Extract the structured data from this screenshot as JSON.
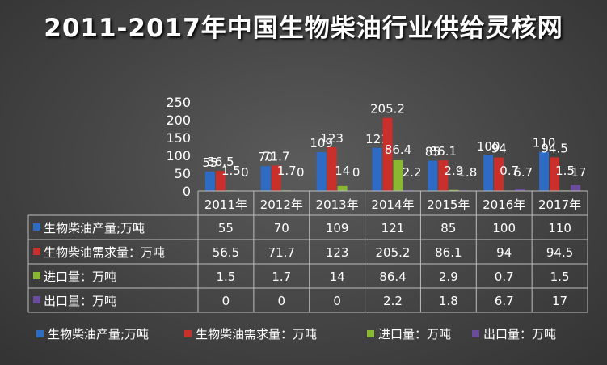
{
  "chart_data": {
    "type": "bar",
    "title": "2011-2017年中国生物柴油行业供给灵核网",
    "categories": [
      "2011年",
      "2012年",
      "2013年",
      "2014年",
      "2015年",
      "2016年",
      "2017年"
    ],
    "ylim": [
      0,
      250
    ],
    "yticks": [
      0,
      50,
      100,
      150,
      200,
      250
    ],
    "grid": false,
    "legend_position": "bottom",
    "data_table": true,
    "series": [
      {
        "name": "生物柴油产量;万吨",
        "color": "#2e6bc4",
        "values": [
          55,
          70,
          109,
          121,
          85,
          100,
          110
        ],
        "labels": [
          "55",
          "70",
          "109",
          "121",
          "85",
          "100",
          "110"
        ]
      },
      {
        "name": "生物柴油需求量：万吨",
        "color": "#c9302c",
        "values": [
          56.5,
          71.7,
          123,
          205.2,
          86.1,
          94,
          94.5
        ],
        "labels": [
          "56.5",
          "71.7",
          "123",
          "205.2",
          "86.1",
          "94",
          "94.5"
        ]
      },
      {
        "name": "进口量：万吨",
        "color": "#8ab832",
        "values": [
          1.5,
          1.7,
          14,
          86.4,
          2.9,
          0.7,
          1.5
        ],
        "labels": [
          "1.5",
          "1.7",
          "14",
          "86.4",
          "2.9",
          "0.7",
          "1.5"
        ]
      },
      {
        "name": "出口量：万吨",
        "color": "#6a4c9c",
        "values": [
          0,
          0,
          0,
          2.2,
          1.8,
          6.7,
          17
        ],
        "labels": [
          "0",
          "0",
          "0",
          "2.2",
          "1.8",
          "6.7",
          "17"
        ]
      }
    ]
  }
}
